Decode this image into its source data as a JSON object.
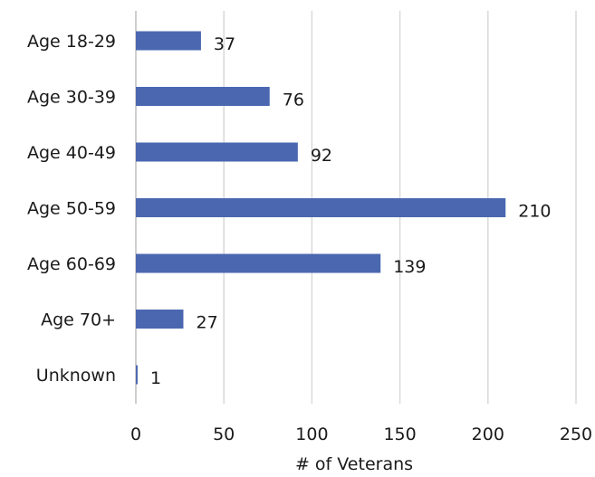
{
  "chart_data": {
    "type": "bar",
    "orientation": "horizontal",
    "categories": [
      "Age 18-29",
      "Age 30-39",
      "Age 40-49",
      "Age 50-59",
      "Age 60-69",
      "Age 70+",
      "Unknown"
    ],
    "values": [
      37,
      76,
      92,
      210,
      139,
      27,
      1
    ],
    "data_labels": [
      "37",
      "76",
      "92",
      "210",
      "139",
      "27",
      "1"
    ],
    "xlabel": "# of Veterans",
    "ylabel": "",
    "xlim": [
      0,
      250
    ],
    "xticks": [
      0,
      50,
      100,
      150,
      200,
      250
    ],
    "xtick_labels": [
      "0",
      "50",
      "100",
      "150",
      "200",
      "250"
    ],
    "grid": "vertical",
    "legend": "none",
    "colors": {
      "bar": "#4a67b0",
      "grid": "#d9d9d9",
      "axis": "#bfbfbf"
    }
  }
}
